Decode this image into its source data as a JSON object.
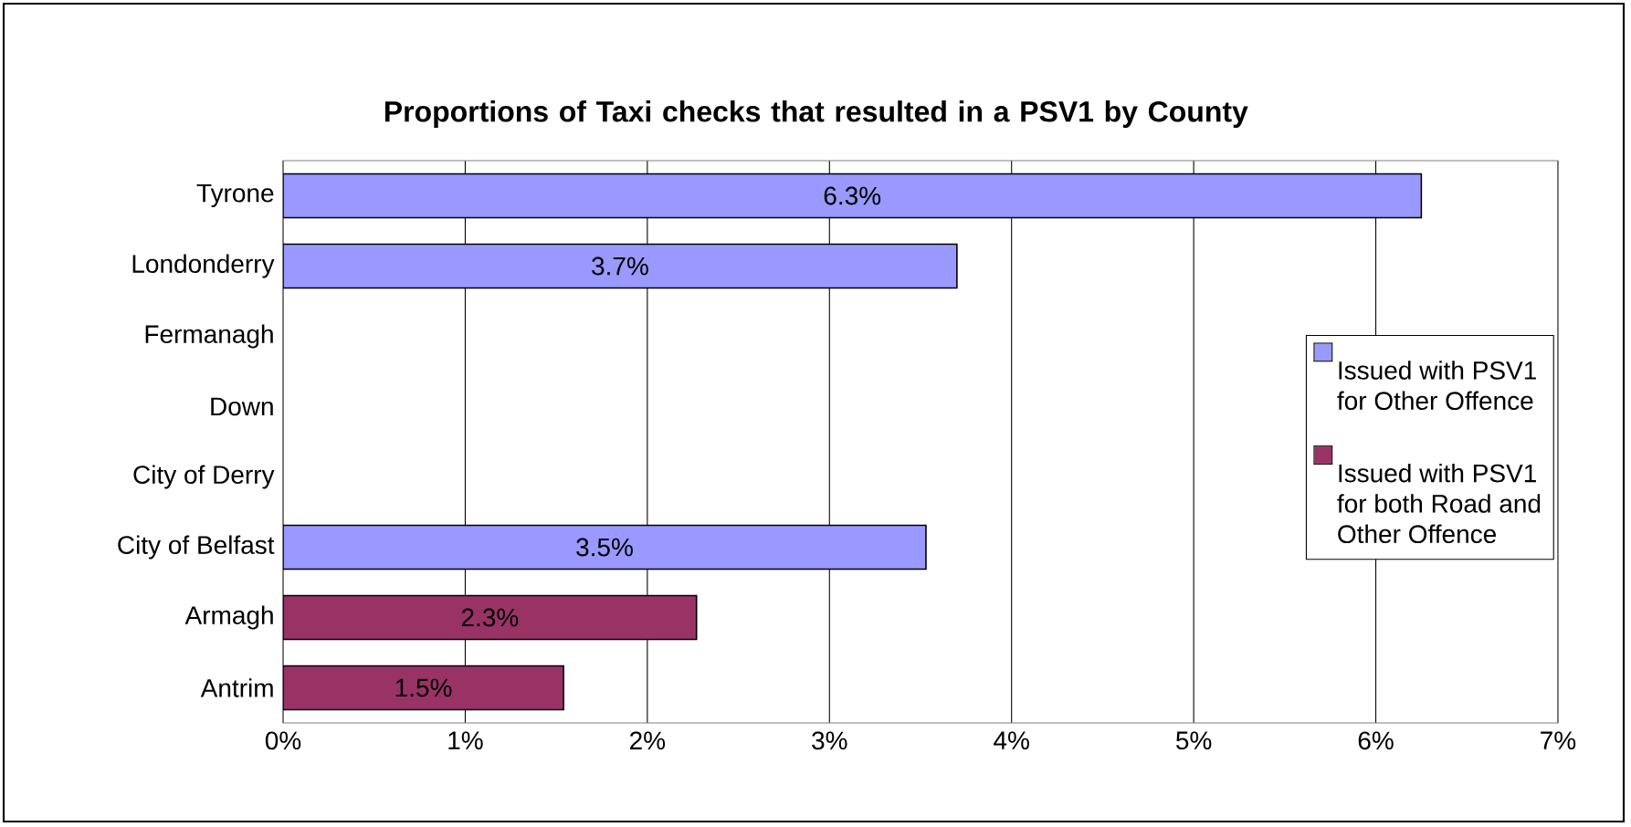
{
  "chart_data": {
    "type": "bar",
    "orientation": "horizontal",
    "title": "Proportions of Taxi checks that resulted in a PSV1 by County",
    "categories": [
      "Tyrone",
      "Londonderry",
      "Fermanagh",
      "Down",
      "City of Derry",
      "City of Belfast",
      "Armagh",
      "Antrim"
    ],
    "series": [
      {
        "name": "Issued with PSV1 for Other Offence",
        "color": "#9999ff",
        "values": [
          6.25,
          3.7,
          null,
          null,
          null,
          3.53,
          null,
          null
        ],
        "value_labels": [
          "6.3%",
          "3.7%",
          null,
          null,
          null,
          "3.5%",
          null,
          null
        ]
      },
      {
        "name": "Issued with PSV1 for both Road and Other Offence",
        "color": "#993366",
        "values": [
          null,
          null,
          null,
          null,
          null,
          null,
          2.27,
          1.54
        ],
        "value_labels": [
          null,
          null,
          null,
          null,
          null,
          null,
          "2.3%",
          "1.5%"
        ]
      }
    ],
    "xlim": [
      0,
      7
    ],
    "xticks": [
      {
        "value": 0,
        "label": "0%"
      },
      {
        "value": 1,
        "label": "1%"
      },
      {
        "value": 2,
        "label": "2%"
      },
      {
        "value": 3,
        "label": "3%"
      },
      {
        "value": 4,
        "label": "4%"
      },
      {
        "value": 5,
        "label": "5%"
      },
      {
        "value": 6,
        "label": "6%"
      },
      {
        "value": 7,
        "label": "7%"
      }
    ],
    "grid": "x",
    "legend": "right"
  }
}
